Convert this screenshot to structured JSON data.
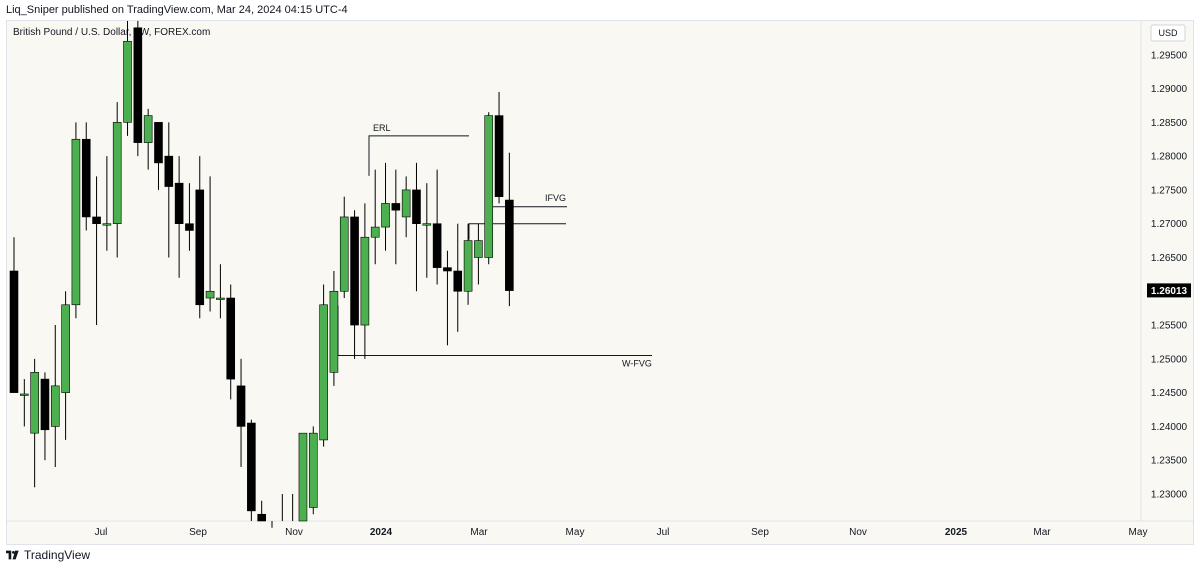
{
  "header": {
    "published_text": "Liq_Sniper published on TradingView.com, Mar 24, 2024 04:15 UTC-4"
  },
  "chart": {
    "symbol_text": "British Pound / U.S. Dollar, 1W, FOREX.com",
    "currency_button": "USD"
  },
  "footer": {
    "brand": "TradingView"
  },
  "colors": {
    "background": "#faf8f2",
    "up_candle": "#4caf50",
    "down_candle": "#000000",
    "price_tag": "#000000"
  },
  "chart_data": {
    "type": "candlestick",
    "y_range": [
      1.226,
      1.3
    ],
    "y_ticks": [
      "1.23000",
      "1.23500",
      "1.24000",
      "1.24500",
      "1.25000",
      "1.25500",
      "1.26000",
      "1.26500",
      "1.27000",
      "1.27500",
      "1.28000",
      "1.28500",
      "1.29000",
      "1.29500"
    ],
    "x_ticks": [
      "Jul",
      "Sep",
      "Nov",
      "2024",
      "Mar",
      "May",
      "Jul",
      "Sep",
      "Nov",
      "2025",
      "Mar",
      "May"
    ],
    "last_price": "1.26013",
    "candles": [
      {
        "o": 1.263,
        "h": 1.268,
        "l": 1.245,
        "c": 1.245
      },
      {
        "o": 1.2448,
        "h": 1.247,
        "l": 1.24,
        "c": 1.2448
      },
      {
        "o": 1.239,
        "h": 1.25,
        "l": 1.231,
        "c": 1.248
      },
      {
        "o": 1.247,
        "h": 1.248,
        "l": 1.235,
        "c": 1.2395
      },
      {
        "o": 1.24,
        "h": 1.255,
        "l": 1.234,
        "c": 1.246
      },
      {
        "o": 1.245,
        "h": 1.26,
        "l": 1.238,
        "c": 1.258
      },
      {
        "o": 1.258,
        "h": 1.285,
        "l": 1.256,
        "c": 1.2825
      },
      {
        "o": 1.2825,
        "h": 1.285,
        "l": 1.269,
        "c": 1.271
      },
      {
        "o": 1.271,
        "h": 1.277,
        "l": 1.255,
        "c": 1.27
      },
      {
        "o": 1.27,
        "h": 1.28,
        "l": 1.266,
        "c": 1.27
      },
      {
        "o": 1.27,
        "h": 1.288,
        "l": 1.265,
        "c": 1.285
      },
      {
        "o": 1.285,
        "h": 1.3,
        "l": 1.283,
        "c": 1.297
      },
      {
        "o": 1.299,
        "h": 1.302,
        "l": 1.28,
        "c": 1.282
      },
      {
        "o": 1.282,
        "h": 1.287,
        "l": 1.278,
        "c": 1.286
      },
      {
        "o": 1.285,
        "h": 1.285,
        "l": 1.275,
        "c": 1.279
      },
      {
        "o": 1.28,
        "h": 1.285,
        "l": 1.265,
        "c": 1.2755
      },
      {
        "o": 1.276,
        "h": 1.28,
        "l": 1.262,
        "c": 1.27
      },
      {
        "o": 1.27,
        "h": 1.276,
        "l": 1.266,
        "c": 1.269
      },
      {
        "o": 1.275,
        "h": 1.28,
        "l": 1.256,
        "c": 1.258
      },
      {
        "o": 1.259,
        "h": 1.277,
        "l": 1.257,
        "c": 1.26
      },
      {
        "o": 1.259,
        "h": 1.264,
        "l": 1.256,
        "c": 1.259
      },
      {
        "o": 1.259,
        "h": 1.261,
        "l": 1.244,
        "c": 1.247
      },
      {
        "o": 1.246,
        "h": 1.25,
        "l": 1.234,
        "c": 1.24
      },
      {
        "o": 1.2405,
        "h": 1.241,
        "l": 1.225,
        "c": 1.2275
      },
      {
        "o": 1.227,
        "h": 1.229,
        "l": 1.22,
        "c": 1.221
      },
      {
        "o": 1.221,
        "h": 1.225,
        "l": 1.215,
        "c": 1.2165
      },
      {
        "o": 1.2165,
        "h": 1.23,
        "l": 1.215,
        "c": 1.22
      },
      {
        "o": 1.22,
        "h": 1.23,
        "l": 1.215,
        "c": 1.221
      },
      {
        "o": 1.22,
        "h": 1.239,
        "l": 1.219,
        "c": 1.239
      },
      {
        "o": 1.228,
        "h": 1.24,
        "l": 1.227,
        "c": 1.239
      },
      {
        "o": 1.238,
        "h": 1.261,
        "l": 1.237,
        "c": 1.258
      },
      {
        "o": 1.248,
        "h": 1.263,
        "l": 1.246,
        "c": 1.26
      },
      {
        "o": 1.26,
        "h": 1.274,
        "l": 1.259,
        "c": 1.271
      },
      {
        "o": 1.271,
        "h": 1.272,
        "l": 1.25,
        "c": 1.255
      },
      {
        "o": 1.255,
        "h": 1.273,
        "l": 1.25,
        "c": 1.268
      },
      {
        "o": 1.268,
        "h": 1.278,
        "l": 1.264,
        "c": 1.2695
      },
      {
        "o": 1.2695,
        "h": 1.279,
        "l": 1.266,
        "c": 1.273
      },
      {
        "o": 1.273,
        "h": 1.278,
        "l": 1.264,
        "c": 1.272
      },
      {
        "o": 1.271,
        "h": 1.277,
        "l": 1.268,
        "c": 1.275
      },
      {
        "o": 1.275,
        "h": 1.279,
        "l": 1.26,
        "c": 1.27
      },
      {
        "o": 1.27,
        "h": 1.276,
        "l": 1.262,
        "c": 1.27
      },
      {
        "o": 1.27,
        "h": 1.278,
        "l": 1.261,
        "c": 1.2635
      },
      {
        "o": 1.2635,
        "h": 1.266,
        "l": 1.252,
        "c": 1.263
      },
      {
        "o": 1.263,
        "h": 1.27,
        "l": 1.254,
        "c": 1.26
      },
      {
        "o": 1.26,
        "h": 1.27,
        "l": 1.258,
        "c": 1.2675
      },
      {
        "o": 1.265,
        "h": 1.27,
        "l": 1.261,
        "c": 1.2675
      },
      {
        "o": 1.265,
        "h": 1.2865,
        "l": 1.264,
        "c": 1.286
      },
      {
        "o": 1.286,
        "h": 1.2895,
        "l": 1.273,
        "c": 1.274
      },
      {
        "o": 1.2735,
        "h": 1.2805,
        "l": 1.2578,
        "c": 1.2601
      }
    ],
    "annotations": [
      {
        "label": "ERL",
        "price": 1.283
      },
      {
        "label": "IFVG",
        "price": 1.2725
      },
      {
        "label": "",
        "price": 1.27
      },
      {
        "label": "W-FVG",
        "price": 1.2505
      }
    ]
  }
}
